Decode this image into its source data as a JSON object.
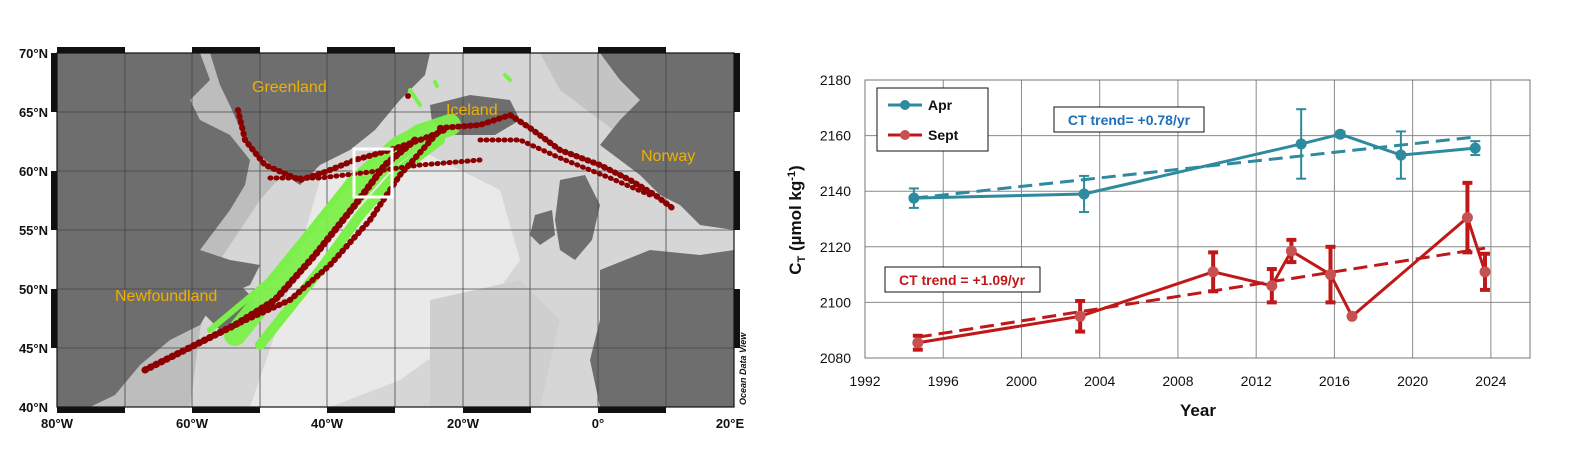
{
  "map": {
    "lat_labels": [
      "70°N",
      "65°N",
      "60°N",
      "55°N",
      "50°N",
      "45°N",
      "40°N"
    ],
    "lon_labels": [
      "80°W",
      "60°W",
      "40°W",
      "20°W",
      "0°",
      "20°E"
    ],
    "regions": {
      "greenland": "Greenland",
      "iceland": "Iceland",
      "norway": "Norway",
      "newfoundland": "Newfoundland"
    },
    "credit": "Ocean Data View",
    "colors": {
      "ocean_light": "#e6e6e6",
      "ocean_mid": "#c8c8c8",
      "land": "#6e6e6e",
      "track_green": "#7cf04a",
      "track_red": "#8b0000",
      "region_label": "#f0b000"
    }
  },
  "chart_data": {
    "type": "line",
    "xlabel": "Year",
    "ylabel": "C",
    "ylabel_sub": "T",
    "ylabel_units": " (µmol kg",
    "ylabel_sup": "-1",
    "ylabel_close": ")",
    "xlim": [
      1992,
      2026
    ],
    "ylim": [
      2080,
      2180
    ],
    "xticks": [
      "1992",
      "1996",
      "2000",
      "2004",
      "2008",
      "2012",
      "2016",
      "2020",
      "2024"
    ],
    "yticks": [
      "2080",
      "2100",
      "2120",
      "2140",
      "2160",
      "2180"
    ],
    "grid": true,
    "legend_position": "top-left",
    "series": [
      {
        "name": "Apr",
        "color": "#2e8a9e",
        "x": [
          1994.5,
          2003.2,
          2014.3,
          2016.3,
          2019.4,
          2023.2
        ],
        "y": [
          2137.5,
          2139,
          2157,
          2160.5,
          2153,
          2155.5
        ],
        "err": [
          3.5,
          6.5,
          12.5,
          1,
          8.5,
          2.5
        ],
        "trend": {
          "x": [
            1994.5,
            2023.2
          ],
          "y": [
            2137.5,
            2159.5
          ]
        },
        "trend_label": "CT trend= +0.78/yr"
      },
      {
        "name": "Sept",
        "color": "#c01818",
        "x": [
          1994.7,
          2003.0,
          2009.8,
          2012.8,
          2013.8,
          2015.8,
          2016.9,
          2022.8,
          2023.7
        ],
        "y": [
          2085.5,
          2095,
          2111,
          2106,
          2118.5,
          2110,
          2095,
          2130.5,
          2111
        ],
        "err": [
          2.5,
          5.5,
          7,
          6,
          4,
          10,
          0,
          12.5,
          6.5
        ],
        "trend": {
          "x": [
            1994.7,
            2023.7
          ],
          "y": [
            2087.5,
            2119.5
          ]
        },
        "trend_label": "CT trend = +1.09/yr"
      }
    ]
  }
}
